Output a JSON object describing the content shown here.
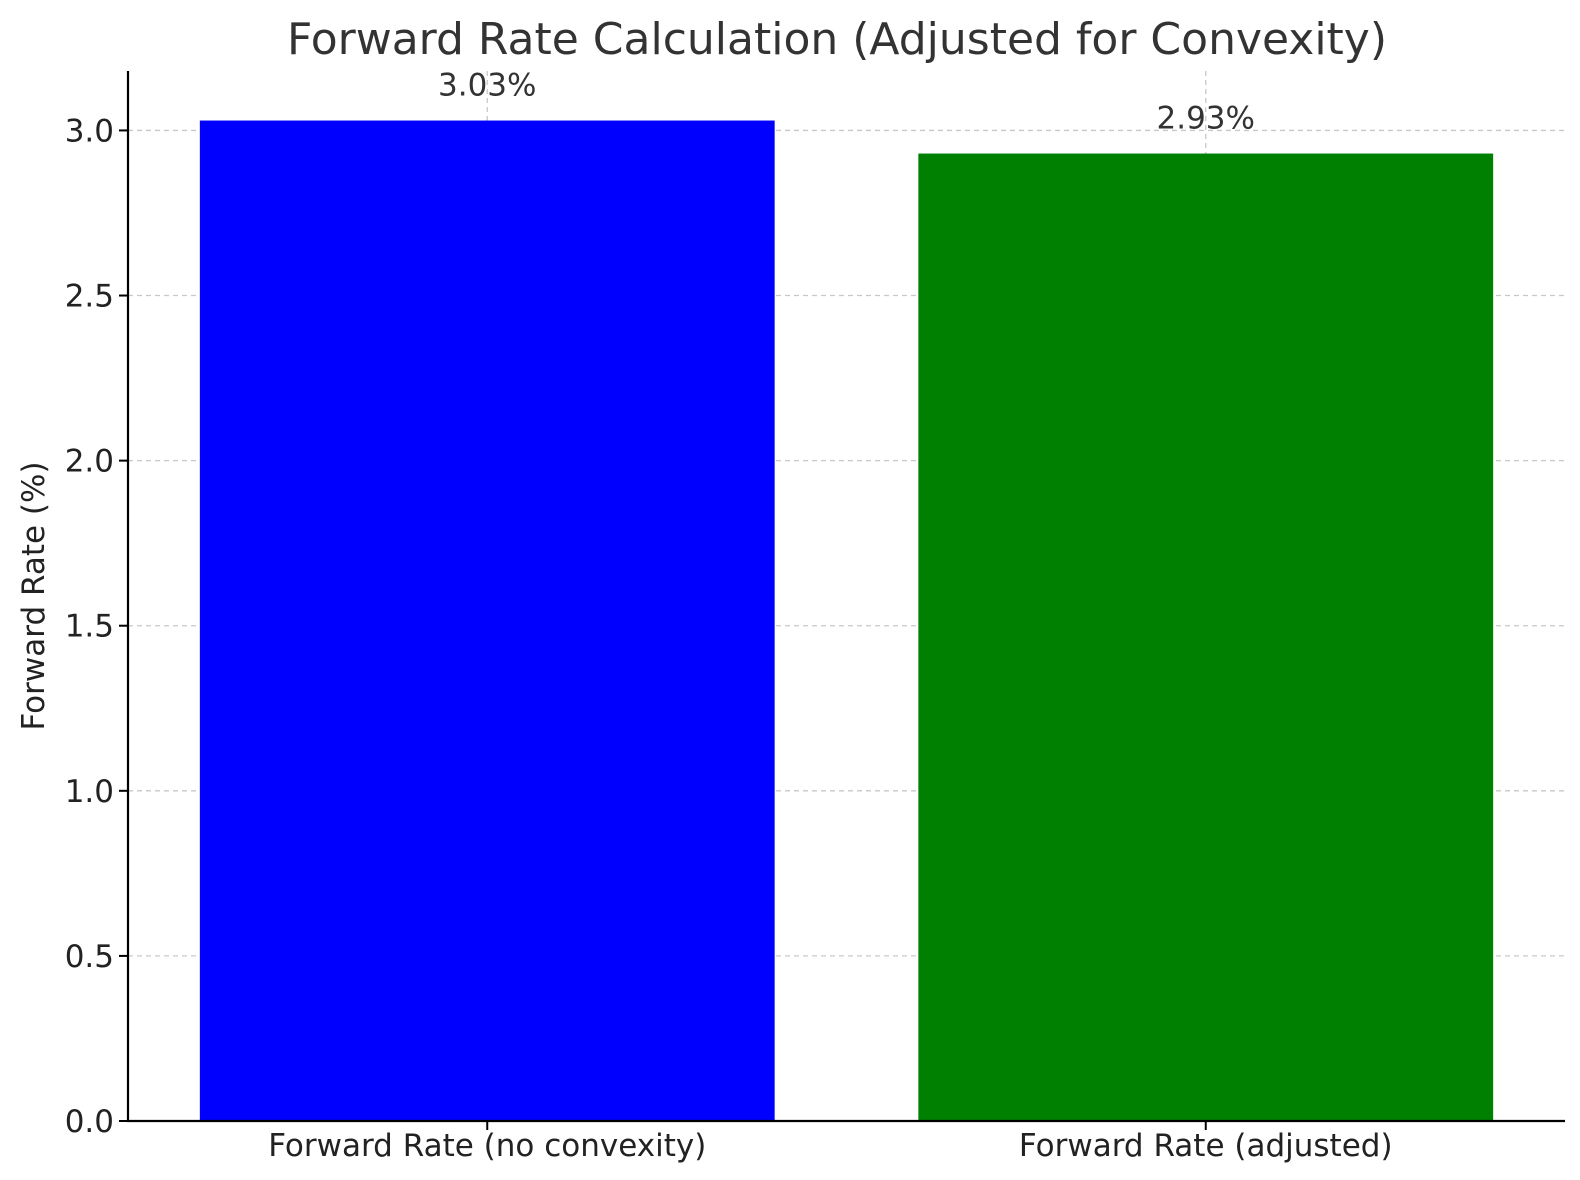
{
  "chart_data": {
    "type": "bar",
    "title": "Forward Rate Calculation (Adjusted for Convexity)",
    "xlabel": "",
    "ylabel": "Forward Rate (%)",
    "categories": [
      "Forward Rate (no convexity)",
      "Forward Rate (adjusted)"
    ],
    "values": [
      3.03,
      2.93
    ],
    "data_labels": [
      "3.03%",
      "2.93%"
    ],
    "colors": [
      "#0000ff",
      "#008000"
    ],
    "ylim": [
      0,
      3.18
    ],
    "yticks": [
      0.0,
      0.5,
      1.0,
      1.5,
      2.0,
      2.5,
      3.0
    ],
    "ytick_labels": [
      "0.0",
      "0.5",
      "1.0",
      "1.5",
      "2.0",
      "2.5",
      "3.0"
    ],
    "grid": true,
    "legend": "none"
  }
}
